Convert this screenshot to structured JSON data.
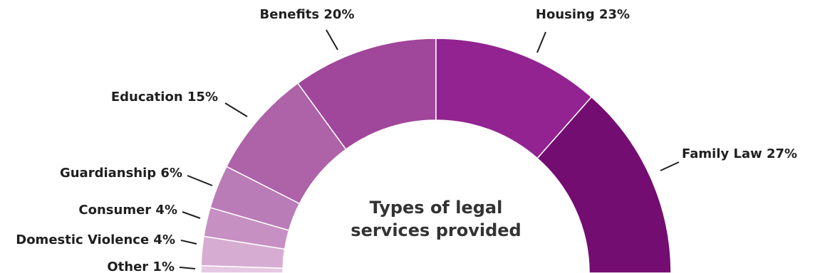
{
  "chart_data": {
    "type": "pie",
    "style": "half-donut",
    "title": [
      "Types of legal",
      "services provided"
    ],
    "slices": [
      {
        "label": "Other",
        "value": 1,
        "color": "#e6c8e2"
      },
      {
        "label": "Domestic Violence",
        "value": 4,
        "color": "#d7acd2"
      },
      {
        "label": "Consumer",
        "value": 4,
        "color": "#c690c2"
      },
      {
        "label": "Guardianship",
        "value": 6,
        "color": "#b97cb7"
      },
      {
        "label": "Education",
        "value": 15,
        "color": "#ae62a8"
      },
      {
        "label": "Benefits",
        "value": 20,
        "color": "#a0479b"
      },
      {
        "label": "Housing",
        "value": 23,
        "color": "#922391"
      },
      {
        "label": "Family Law",
        "value": 27,
        "color": "#740d71"
      }
    ],
    "value_suffix": "%"
  }
}
